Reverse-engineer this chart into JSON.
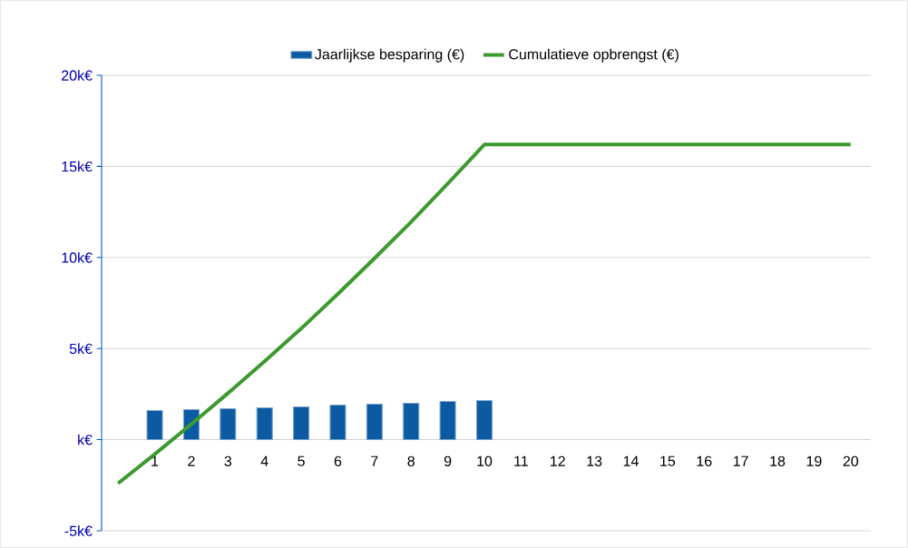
{
  "chart_data": {
    "type": "bar",
    "categories": [
      null,
      "1",
      "2",
      "3",
      "4",
      "5",
      "6",
      "7",
      "8",
      "9",
      "10",
      "11",
      "12",
      "13",
      "14",
      "15",
      "16",
      "17",
      "18",
      "19",
      "20"
    ],
    "series": [
      {
        "name": "Jaarlijkse besparing (€)",
        "color": "#0b5aa2",
        "values": [
          null,
          1.6,
          1.65,
          1.7,
          1.75,
          1.8,
          1.9,
          1.95,
          2.0,
          2.1,
          2.15,
          null,
          null,
          null,
          null,
          null,
          null,
          null,
          null,
          null,
          null
        ]
      },
      {
        "name": "Cumulatieve opbrengst (€)",
        "type": "line",
        "color": "#3c9a2e",
        "values": [
          -2.4,
          -0.8,
          0.85,
          2.55,
          4.3,
          6.1,
          8.0,
          9.95,
          11.95,
          14.05,
          16.2,
          16.2,
          16.2,
          16.2,
          16.2,
          16.2,
          16.2,
          16.2,
          16.2,
          16.2,
          16.2
        ]
      }
    ],
    "ylim": [
      -5,
      20
    ],
    "yticks": [
      {
        "value": -5,
        "label": "-5k€"
      },
      {
        "value": 0,
        "label": "k€"
      },
      {
        "value": 5,
        "label": "5k€"
      },
      {
        "value": 10,
        "label": "10k€"
      },
      {
        "value": 15,
        "label": "15k€"
      },
      {
        "value": 20,
        "label": "20k€"
      }
    ],
    "grid": "y",
    "legend": "top",
    "marker": "none",
    "line_style": "solid"
  }
}
